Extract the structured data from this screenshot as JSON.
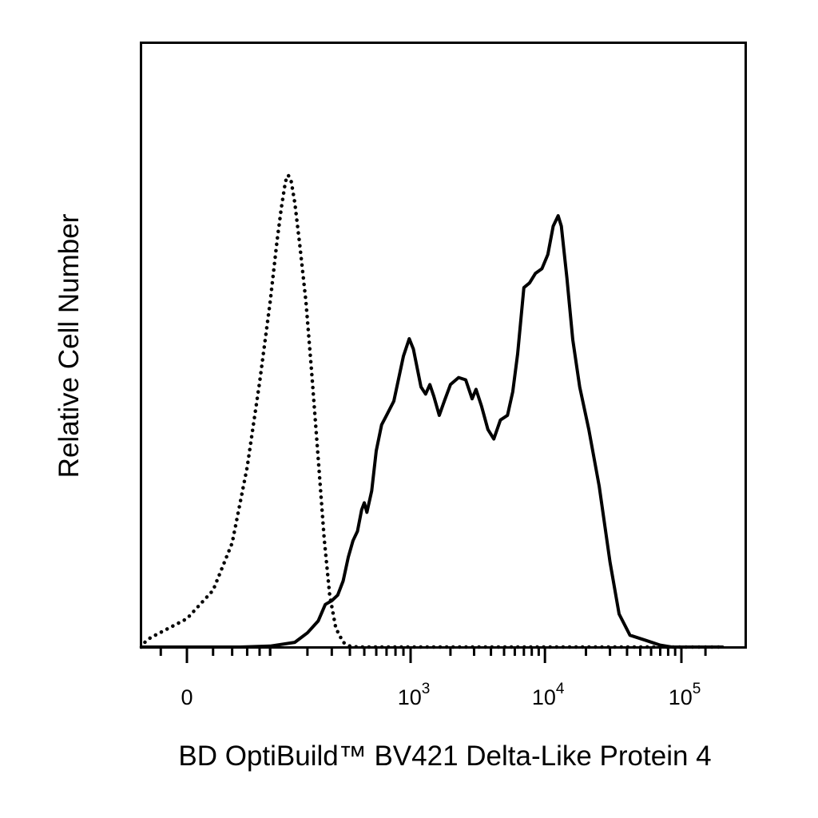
{
  "chart_data": {
    "type": "line",
    "xlabel": "BD OptiBuild™ BV421 Delta-Like Protein 4",
    "ylabel": "Relative Cell Number",
    "x_scale": "biexponential",
    "x_ticks": [
      {
        "value": 0,
        "base": "0",
        "exp": ""
      },
      {
        "value": 1000,
        "base": "10",
        "exp": "3"
      },
      {
        "value": 10000,
        "base": "10",
        "exp": "4"
      },
      {
        "value": 100000,
        "base": "10",
        "exp": "5"
      }
    ],
    "y_ticks": false,
    "grid": false,
    "legend": "none",
    "series": [
      {
        "style": "dotted",
        "color": "#000000",
        "points": [
          [
            -100,
            0.0
          ],
          [
            -60,
            0.004
          ],
          [
            -30,
            0.02
          ],
          [
            0,
            0.06
          ],
          [
            20,
            0.12
          ],
          [
            40,
            0.22
          ],
          [
            60,
            0.38
          ],
          [
            80,
            0.56
          ],
          [
            100,
            0.73
          ],
          [
            115,
            0.86
          ],
          [
            125,
            0.93
          ],
          [
            135,
            0.985
          ],
          [
            142,
            0.998
          ],
          [
            150,
            0.985
          ],
          [
            160,
            0.94
          ],
          [
            175,
            0.85
          ],
          [
            195,
            0.73
          ],
          [
            215,
            0.58
          ],
          [
            240,
            0.4
          ],
          [
            265,
            0.23
          ],
          [
            290,
            0.11
          ],
          [
            320,
            0.04
          ],
          [
            360,
            0.01
          ],
          [
            400,
            0.002
          ],
          [
            450,
            0.0
          ],
          [
            700,
            0.0
          ],
          [
            2000,
            0.0
          ],
          [
            10000,
            0.0
          ],
          [
            100000,
            0.0
          ],
          [
            200000,
            0.0
          ]
        ]
      },
      {
        "style": "solid",
        "color": "#000000",
        "points": [
          [
            -100,
            0.0
          ],
          [
            50,
            0.0
          ],
          [
            100,
            0.002
          ],
          [
            160,
            0.01
          ],
          [
            200,
            0.03
          ],
          [
            240,
            0.055
          ],
          [
            270,
            0.09
          ],
          [
            300,
            0.098
          ],
          [
            330,
            0.11
          ],
          [
            360,
            0.14
          ],
          [
            390,
            0.19
          ],
          [
            420,
            0.225
          ],
          [
            450,
            0.245
          ],
          [
            480,
            0.29
          ],
          [
            500,
            0.305
          ],
          [
            520,
            0.285
          ],
          [
            560,
            0.33
          ],
          [
            600,
            0.415
          ],
          [
            650,
            0.47
          ],
          [
            700,
            0.49
          ],
          [
            780,
            0.52
          ],
          [
            900,
            0.615
          ],
          [
            980,
            0.652
          ],
          [
            1050,
            0.63
          ],
          [
            1200,
            0.55
          ],
          [
            1300,
            0.535
          ],
          [
            1400,
            0.555
          ],
          [
            1500,
            0.53
          ],
          [
            1650,
            0.49
          ],
          [
            1800,
            0.52
          ],
          [
            2000,
            0.555
          ],
          [
            2300,
            0.57
          ],
          [
            2600,
            0.565
          ],
          [
            2900,
            0.525
          ],
          [
            3100,
            0.545
          ],
          [
            3400,
            0.51
          ],
          [
            3800,
            0.46
          ],
          [
            4200,
            0.44
          ],
          [
            4700,
            0.48
          ],
          [
            5300,
            0.49
          ],
          [
            5800,
            0.54
          ],
          [
            6300,
            0.62
          ],
          [
            7000,
            0.76
          ],
          [
            7700,
            0.77
          ],
          [
            8500,
            0.79
          ],
          [
            9500,
            0.8
          ],
          [
            10500,
            0.83
          ],
          [
            11500,
            0.89
          ],
          [
            12500,
            0.912
          ],
          [
            13200,
            0.89
          ],
          [
            14500,
            0.78
          ],
          [
            16000,
            0.65
          ],
          [
            18000,
            0.55
          ],
          [
            21000,
            0.46
          ],
          [
            25000,
            0.34
          ],
          [
            30000,
            0.18
          ],
          [
            35000,
            0.07
          ],
          [
            42000,
            0.025
          ],
          [
            55000,
            0.014
          ],
          [
            70000,
            0.004
          ],
          [
            85000,
            0.0
          ],
          [
            120000,
            0.0
          ],
          [
            200000,
            0.0
          ]
        ]
      }
    ]
  }
}
